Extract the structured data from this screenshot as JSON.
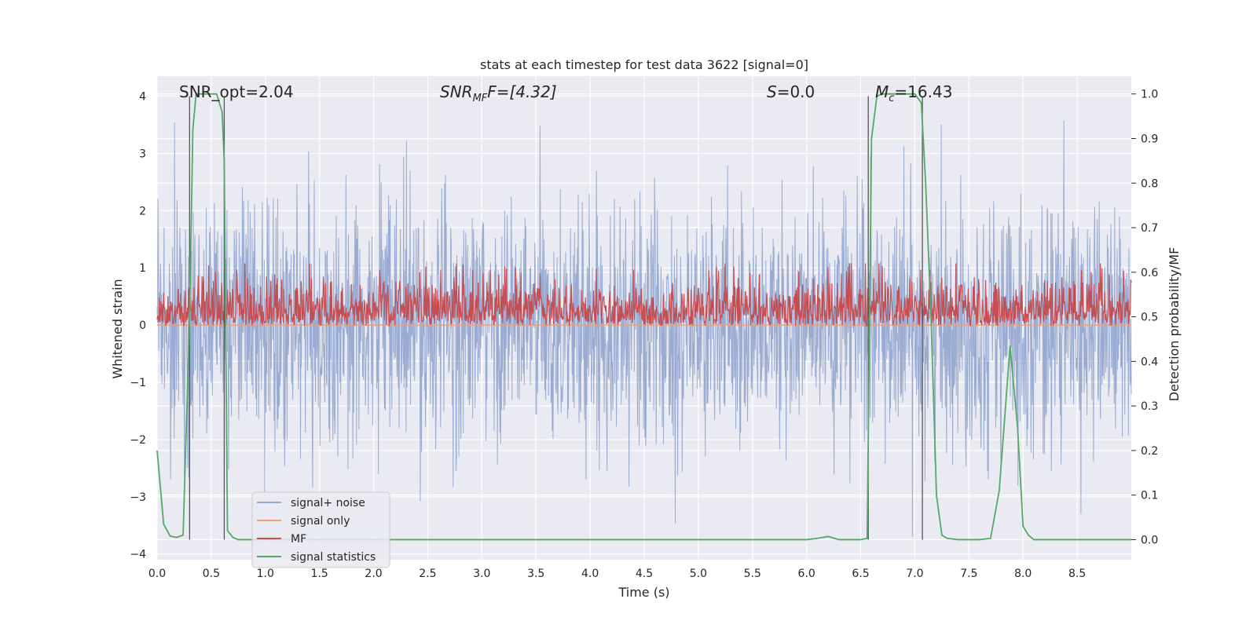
{
  "chart_data": {
    "type": "line",
    "title": "stats at each timestep for test data 3622 [signal=0]",
    "xlabel": "Time (s)",
    "ylabel_left": "Whitened strain",
    "ylabel_right": "Detection probability/MF",
    "xlim": [
      0.0,
      9.0
    ],
    "ylim_left": [
      -4.1,
      4.35
    ],
    "ylim_right": [
      -0.045,
      1.04
    ],
    "x_ticks": [
      "0.0",
      "0.5",
      "1.0",
      "1.5",
      "2.0",
      "2.5",
      "3.0",
      "3.5",
      "4.0",
      "4.5",
      "5.0",
      "5.5",
      "6.0",
      "6.5",
      "7.0",
      "7.5",
      "8.0",
      "8.5"
    ],
    "y_ticks_left": [
      "4",
      "3",
      "2",
      "1",
      "0",
      "−1",
      "−2",
      "−3",
      "−4"
    ],
    "y_ticks_right": [
      "1.0",
      "0.9",
      "0.8",
      "0.7",
      "0.6",
      "0.5",
      "0.4",
      "0.3",
      "0.2",
      "0.1",
      "0.0"
    ],
    "grid": true,
    "legend_position": "lower-left",
    "annotations": {
      "snr_opt": "SNR_opt=2.04",
      "snr_mf_main": "SNR",
      "snr_mf_sub": "MF",
      "snr_mf_rest": "F=[4.32]",
      "s": "=0.0",
      "s_sym": "S",
      "mc_main": "M",
      "mc_sub": "c",
      "mc_rest": "=16.43"
    },
    "vlines_s": [
      0.3,
      0.62,
      6.57,
      7.07
    ],
    "series": [
      {
        "name": "signal+ noise",
        "color": "#95a8d0",
        "axis": "left",
        "kind": "noise",
        "range_approx": [
          -3.7,
          4.0
        ]
      },
      {
        "name": "signal only",
        "color": "#e8a07e",
        "axis": "left",
        "values_const": 0.0
      },
      {
        "name": "MF",
        "color": "#c44e52",
        "axis": "right",
        "kind": "noise",
        "range_approx": [
          0.48,
          0.62
        ]
      },
      {
        "name": "signal statistics",
        "color": "#55a868",
        "axis": "right",
        "x": [
          0.0,
          0.06,
          0.12,
          0.18,
          0.24,
          0.3,
          0.33,
          0.36,
          0.4,
          0.45,
          0.5,
          0.55,
          0.6,
          0.62,
          0.65,
          0.7,
          0.75,
          1.0,
          2.0,
          3.0,
          4.0,
          5.0,
          6.0,
          6.1,
          6.2,
          6.3,
          6.5,
          6.56,
          6.6,
          6.65,
          6.7,
          7.0,
          7.06,
          7.1,
          7.15,
          7.2,
          7.25,
          7.3,
          7.4,
          7.6,
          7.7,
          7.78,
          7.88,
          7.95,
          8.0,
          8.05,
          8.1,
          8.3,
          9.0
        ],
        "values": [
          0.2,
          0.035,
          0.008,
          0.005,
          0.01,
          0.5,
          0.92,
          1.0,
          1.0,
          1.0,
          1.0,
          1.0,
          0.96,
          0.85,
          0.02,
          0.005,
          0.0,
          0.0,
          0.0,
          0.0,
          0.0,
          0.0,
          0.0,
          0.003,
          0.007,
          0.0,
          0.0,
          0.003,
          0.9,
          0.995,
          1.0,
          1.0,
          0.98,
          0.8,
          0.5,
          0.1,
          0.01,
          0.003,
          0.0,
          0.0,
          0.003,
          0.11,
          0.435,
          0.25,
          0.03,
          0.01,
          0.0,
          0.0,
          0.0
        ]
      }
    ]
  }
}
